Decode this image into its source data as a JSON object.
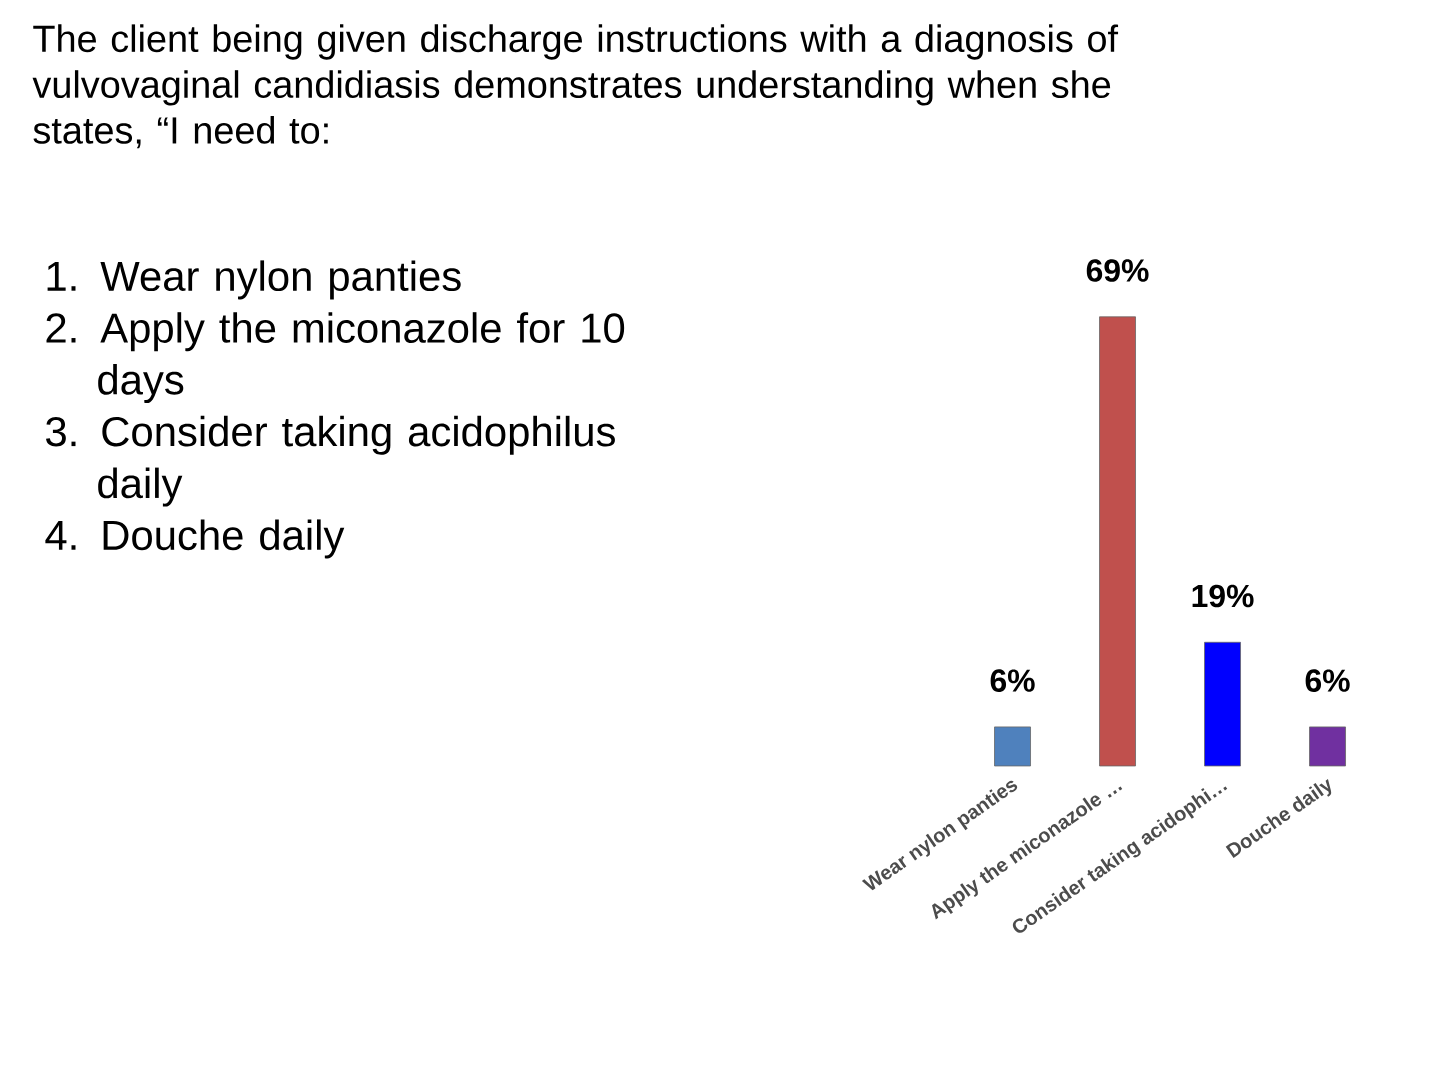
{
  "chart_data": {
    "type": "bar",
    "title": "The client being given discharge instructions with a diagnosis of vulvovaginal candidiasis demonstrates understanding when she states, “I need to:",
    "annotations": [
      "1. Wear nylon panties",
      "2. Apply the miconazole for 10 days",
      "3. Consider taking acidophilus daily",
      "4. Douche daily"
    ],
    "categories": [
      "Wear nylon panties",
      "Apply the miconazole …",
      "Consider taking acidophi…",
      "Douche daily"
    ],
    "values": [
      6,
      69,
      19,
      6
    ],
    "value_labels": [
      "6%",
      "69%",
      "19%",
      "6%"
    ],
    "colors": [
      "#4f81bd",
      "#c0504d",
      "#0000ff",
      "#7030a0"
    ]
  }
}
